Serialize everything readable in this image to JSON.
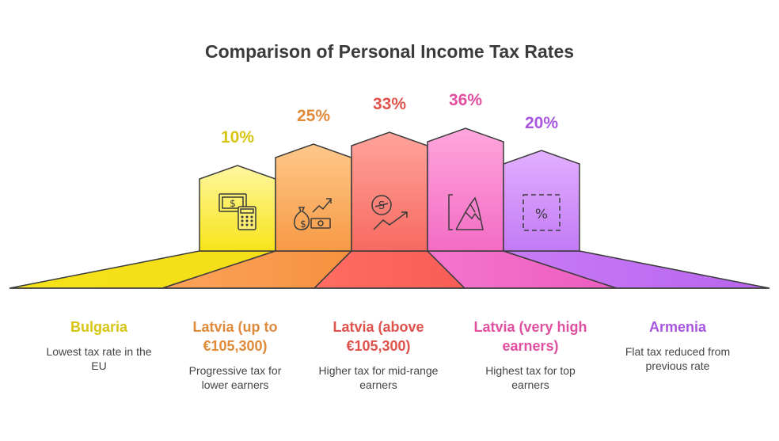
{
  "title": "Comparison of Personal Income Tax Rates",
  "items": [
    {
      "name": "Bulgaria",
      "desc": "Lowest tax rate in the EU",
      "rate": "10%",
      "value": 10,
      "color": "#d8c412",
      "icon": "money-calculator-icon"
    },
    {
      "name": "Latvia (up to €105,300)",
      "desc": "Progressive tax for lower earners",
      "rate": "25%",
      "value": 25,
      "color": "#e08a3a",
      "icon": "money-bag-growth-icon"
    },
    {
      "name": "Latvia (above €105,300)",
      "desc": "Higher tax for mid-range earners",
      "rate": "33%",
      "value": 33,
      "color": "#e0524c",
      "icon": "coin-trend-up-icon"
    },
    {
      "name": "Latvia (very high earners)",
      "desc": "Highest tax for top earners",
      "rate": "36%",
      "value": 36,
      "color": "#e04fa0",
      "icon": "mountain-peak-icon"
    },
    {
      "name": "Armenia",
      "desc": "Flat tax reduced from previous rate",
      "rate": "20%",
      "value": 20,
      "color": "#a855e0",
      "icon": "percent-box-icon"
    }
  ]
}
